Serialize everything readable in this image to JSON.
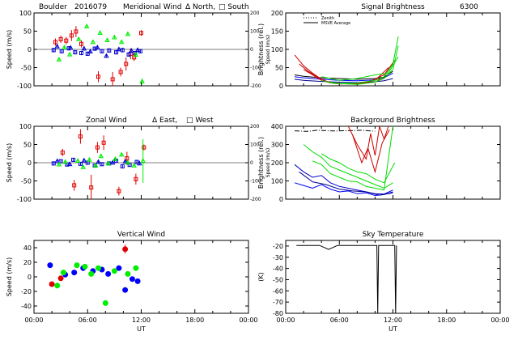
{
  "header": {
    "site": "Boulder",
    "date_code": "2016079",
    "wavelength": "6300"
  },
  "axis_common": {
    "xticks": [
      "00:00",
      "06:00",
      "12:00",
      "18:00",
      "00:00"
    ],
    "xlabel": "UT"
  },
  "chart_data": [
    {
      "id": "meridional",
      "type": "scatter",
      "title_parts": [
        "Meridional Wind",
        "Δ North,",
        "□ South"
      ],
      "ylabel": "Speed (m/s)",
      "ylim": [
        -100,
        100
      ],
      "yticks": [
        -100,
        -50,
        0,
        50,
        100
      ],
      "y2label": "Speed (m/s)",
      "y2lim": [
        -200,
        200
      ],
      "y2ticks": [
        -200,
        -100,
        0,
        100,
        200
      ],
      "xlim": [
        0,
        24
      ],
      "series": [
        {
          "color": "#e00000",
          "marker": "square",
          "x": [
            2.4,
            3.0,
            3.6,
            4.2,
            4.7,
            5.3,
            7.2,
            8.8,
            9.7,
            10.3,
            10.8,
            11.2,
            12.0
          ],
          "y": [
            20,
            28,
            24,
            38,
            49,
            15,
            -75,
            -82,
            -62,
            -40,
            -12,
            -22,
            45
          ],
          "err": [
            10,
            10,
            10,
            15,
            15,
            10,
            15,
            20,
            12,
            18,
            15,
            10,
            8
          ]
        },
        {
          "color": "#0000d0",
          "marker": "square",
          "x": [
            2.2,
            3.1,
            3.9,
            4.6,
            5.3,
            6.0,
            6.8,
            7.6,
            8.4,
            9.2,
            9.9,
            10.6,
            11.3,
            11.9
          ],
          "y": [
            -2,
            -5,
            3,
            -8,
            -10,
            -12,
            2,
            -5,
            -3,
            -8,
            -2,
            -14,
            -10,
            -5
          ],
          "err": [
            6,
            6,
            6,
            6,
            6,
            6,
            6,
            6,
            6,
            6,
            6,
            6,
            6,
            6
          ]
        },
        {
          "color": "#0000d0",
          "marker": "triangle",
          "x": [
            2.6,
            4.1,
            5.6,
            6.3,
            7.1,
            8.1,
            9.5,
            10.9,
            11.6
          ],
          "y": [
            8,
            4,
            2,
            -6,
            5,
            -18,
            0,
            -4,
            -2
          ],
          "err": [
            5,
            5,
            5,
            5,
            5,
            5,
            5,
            5,
            5
          ]
        },
        {
          "color": "#00ee00",
          "marker": "triangle",
          "x": [
            2.8,
            3.4,
            4.0,
            5.0,
            5.9,
            6.6,
            7.4,
            8.2,
            9.0,
            9.8,
            10.5,
            11.4,
            12.1
          ],
          "y": [
            -28,
            5,
            -14,
            28,
            63,
            20,
            45,
            25,
            33,
            20,
            42,
            -15,
            -88
          ],
          "err": [
            5,
            5,
            5,
            5,
            5,
            5,
            5,
            5,
            5,
            5,
            5,
            5,
            8
          ]
        }
      ]
    },
    {
      "id": "brightness",
      "type": "line",
      "title": "Signal Brightness",
      "ylabel": "Brightness (rel.)",
      "ylim": [
        0,
        200
      ],
      "yticks": [
        0,
        50,
        100,
        150,
        200
      ],
      "xlim": [
        0,
        24
      ],
      "legend": [
        "Zenith",
        "MSVE Average"
      ],
      "series": [
        {
          "color": "#0000ff",
          "x": [
            1,
            2,
            4,
            6,
            8,
            10,
            11,
            12
          ],
          "y": [
            25,
            22,
            18,
            15,
            14,
            16,
            22,
            35
          ]
        },
        {
          "color": "#000000",
          "x": [
            1,
            2,
            4,
            6,
            8,
            10,
            11,
            12
          ],
          "y": [
            30,
            26,
            22,
            20,
            18,
            20,
            24,
            40
          ]
        },
        {
          "color": "#00008b",
          "x": [
            1,
            2,
            4,
            6,
            8,
            10,
            11,
            12
          ],
          "y": [
            18,
            15,
            12,
            10,
            9,
            11,
            14,
            20
          ]
        },
        {
          "color": "#cc0000",
          "x": [
            1,
            2,
            3,
            4,
            5,
            6,
            8,
            10,
            11,
            12
          ],
          "y": [
            85,
            55,
            35,
            18,
            8,
            5,
            6,
            10,
            25,
            60
          ]
        },
        {
          "color": "#cc0000",
          "x": [
            1.5,
            2.5,
            3.5,
            4.5,
            6,
            8,
            10,
            11.5
          ],
          "y": [
            60,
            40,
            25,
            12,
            6,
            5,
            15,
            50
          ]
        },
        {
          "color": "#cc0000",
          "x": [
            2,
            3,
            4,
            5,
            7,
            9,
            11,
            12.2
          ],
          "y": [
            45,
            30,
            15,
            8,
            5,
            8,
            30,
            70
          ]
        },
        {
          "color": "#00dd00",
          "x": [
            4,
            5,
            6,
            8,
            10,
            11,
            12,
            12.6
          ],
          "y": [
            15,
            8,
            6,
            8,
            15,
            25,
            60,
            135
          ]
        },
        {
          "color": "#00dd00",
          "x": [
            5,
            6,
            8,
            10,
            11,
            12,
            12.6
          ],
          "y": [
            10,
            6,
            4,
            10,
            20,
            45,
            110
          ]
        },
        {
          "color": "#00dd00",
          "x": [
            4,
            6,
            8,
            10,
            11.5,
            12.6
          ],
          "y": [
            25,
            15,
            20,
            30,
            35,
            80
          ]
        }
      ]
    },
    {
      "id": "zonal",
      "type": "scatter",
      "title_parts": [
        "Zonal Wind",
        "Δ East,",
        "□ West"
      ],
      "ylabel": "Speed (m/s)",
      "ylim": [
        -100,
        100
      ],
      "yticks": [
        -100,
        -50,
        0,
        50,
        100
      ],
      "y2label": "Speed (m/s)",
      "y2lim": [
        -200,
        200
      ],
      "y2ticks": [
        -200,
        -100,
        0,
        100,
        200
      ],
      "xlim": [
        0,
        24
      ],
      "series": [
        {
          "color": "#e00000",
          "marker": "square",
          "x": [
            3.2,
            4.5,
            5.2,
            6.4,
            7.1,
            7.8,
            9.5,
            10.4,
            11.4,
            12.3
          ],
          "y": [
            28,
            -62,
            72,
            -68,
            42,
            55,
            -78,
            12,
            -45,
            42
          ],
          "err": [
            10,
            15,
            20,
            35,
            15,
            20,
            12,
            18,
            15,
            8
          ]
        },
        {
          "color": "#0000d0",
          "marker": "square",
          "x": [
            2.2,
            3.0,
            3.7,
            4.4,
            5.2,
            6.0,
            6.8,
            7.6,
            8.4,
            9.2,
            9.9,
            10.7,
            11.5
          ],
          "y": [
            -2,
            4,
            -5,
            8,
            -3,
            0,
            -8,
            -4,
            -2,
            5,
            -10,
            -6,
            2
          ],
          "err": [
            5,
            5,
            5,
            5,
            5,
            5,
            5,
            5,
            5,
            5,
            5,
            5,
            5
          ]
        },
        {
          "color": "#0000d0",
          "marker": "triangle",
          "x": [
            2.6,
            4.0,
            5.6,
            7.2,
            8.8,
            10.2,
            11.8
          ],
          "y": [
            4,
            -4,
            6,
            2,
            0,
            3,
            -2
          ],
          "err": [
            5,
            5,
            5,
            5,
            5,
            5,
            5
          ]
        },
        {
          "color": "#00ee00",
          "marker": "triangle",
          "x": [
            2.8,
            3.5,
            4.9,
            5.5,
            6.2,
            6.9,
            7.5,
            8.3,
            9.1,
            9.8,
            10.5,
            11.2,
            12.2
          ],
          "y": [
            -5,
            2,
            5,
            -12,
            8,
            -8,
            18,
            -2,
            10,
            22,
            0,
            -8,
            5
          ],
          "err": [
            5,
            5,
            5,
            5,
            5,
            5,
            5,
            5,
            5,
            5,
            5,
            5,
            60
          ]
        }
      ]
    },
    {
      "id": "background",
      "type": "line",
      "title": "Background Brightness",
      "ylabel": "Brightness (rel.)",
      "ylim": [
        0,
        400
      ],
      "yticks": [
        0,
        100,
        200,
        300,
        400
      ],
      "xlim": [
        0,
        24
      ],
      "series": [
        {
          "color": "#000000",
          "x": [
            1,
            2.5,
            3.5,
            5.5,
            7,
            8.5,
            10
          ],
          "y": [
            375,
            372,
            378,
            374,
            376,
            378,
            373
          ]
        },
        {
          "color": "#0000ff",
          "x": [
            1,
            2,
            3,
            4,
            5,
            6,
            7,
            8,
            9,
            10,
            11,
            12
          ],
          "y": [
            90,
            75,
            60,
            80,
            55,
            40,
            45,
            30,
            35,
            20,
            25,
            40
          ]
        },
        {
          "color": "#0000cc",
          "x": [
            1,
            2,
            3,
            4,
            5,
            6,
            7,
            8,
            9,
            10,
            11,
            12
          ],
          "y": [
            190,
            150,
            120,
            130,
            90,
            70,
            60,
            50,
            40,
            30,
            28,
            50
          ]
        },
        {
          "color": "#00008b",
          "x": [
            1.5,
            3,
            4.5,
            6,
            7.5,
            9,
            10.5,
            12
          ],
          "y": [
            150,
            95,
            80,
            55,
            45,
            40,
            22,
            35
          ]
        },
        {
          "color": "#cc0000",
          "x": [
            7,
            8,
            9,
            9.5,
            10,
            10.5,
            11,
            11.5
          ],
          "y": [
            400,
            300,
            220,
            360,
            240,
            400,
            330,
            400
          ]
        },
        {
          "color": "#cc0000",
          "x": [
            7.5,
            8.5,
            9.2,
            10,
            10.8,
            11.6
          ],
          "y": [
            350,
            200,
            280,
            150,
            310,
            380
          ]
        },
        {
          "color": "#00dd00",
          "x": [
            2,
            3,
            4,
            5,
            6,
            7,
            8,
            9,
            10,
            11,
            12
          ],
          "y": [
            300,
            260,
            230,
            180,
            160,
            140,
            120,
            100,
            80,
            60,
            90
          ]
        },
        {
          "color": "#00dd00",
          "x": [
            3,
            4,
            5,
            6,
            7,
            8,
            9,
            10,
            11,
            12
          ],
          "y": [
            210,
            190,
            140,
            120,
            100,
            95,
            70,
            60,
            50,
            400
          ]
        },
        {
          "color": "#00dd00",
          "x": [
            4,
            5,
            6,
            7,
            8,
            9,
            10,
            11,
            12.2
          ],
          "y": [
            250,
            220,
            200,
            170,
            150,
            140,
            110,
            90,
            200
          ]
        }
      ]
    },
    {
      "id": "vertical",
      "type": "scatter",
      "title": "Vertical Wind",
      "ylabel": "Speed (m/s)",
      "ylim": [
        -50,
        50
      ],
      "yticks": [
        -40,
        -20,
        0,
        20,
        40
      ],
      "xlim": [
        0,
        24
      ],
      "series": [
        {
          "color": "#0000ff",
          "marker": "circle",
          "x": [
            1.8,
            3.5,
            4.5,
            5.5,
            6.6,
            7.6,
            8.3,
            9.5,
            10.2,
            11.0,
            11.6
          ],
          "y": [
            16,
            3,
            6,
            12,
            8,
            10,
            4,
            12,
            -18,
            -3,
            -6
          ],
          "err": [
            3,
            3,
            3,
            3,
            3,
            3,
            3,
            3,
            3,
            3,
            3
          ]
        },
        {
          "color": "#e00000",
          "marker": "circle",
          "x": [
            2.0,
            3.0,
            10.2
          ],
          "y": [
            -10,
            -2,
            38
          ],
          "err": [
            3,
            3,
            6
          ]
        },
        {
          "color": "#00ee00",
          "marker": "circle",
          "x": [
            2.6,
            3.3,
            4.8,
            5.7,
            6.4,
            7.2,
            8.0,
            9.0,
            10.5,
            11.4
          ],
          "y": [
            -12,
            6,
            16,
            14,
            4,
            12,
            -36,
            8,
            4,
            12
          ],
          "err": [
            4,
            3,
            3,
            3,
            3,
            3,
            3,
            3,
            3,
            3
          ]
        }
      ]
    },
    {
      "id": "skytemp",
      "type": "line",
      "title": "Sky Temperature",
      "ylabel": "(K)",
      "ylim": [
        -80,
        -15
      ],
      "yticks": [
        -80,
        -70,
        -60,
        -50,
        -40,
        -30,
        -20
      ],
      "xlim": [
        0,
        24
      ],
      "series": [
        {
          "color": "#000000",
          "x": [
            1.2,
            3.8,
            4.8,
            5.8,
            10.2,
            10.3,
            10.4,
            12.2,
            12.3,
            12.4
          ],
          "y": [
            -19.5,
            -19.5,
            -23,
            -19.5,
            -19.5,
            -80,
            -19.5,
            -19.5,
            -80,
            -19.5
          ]
        }
      ]
    }
  ]
}
